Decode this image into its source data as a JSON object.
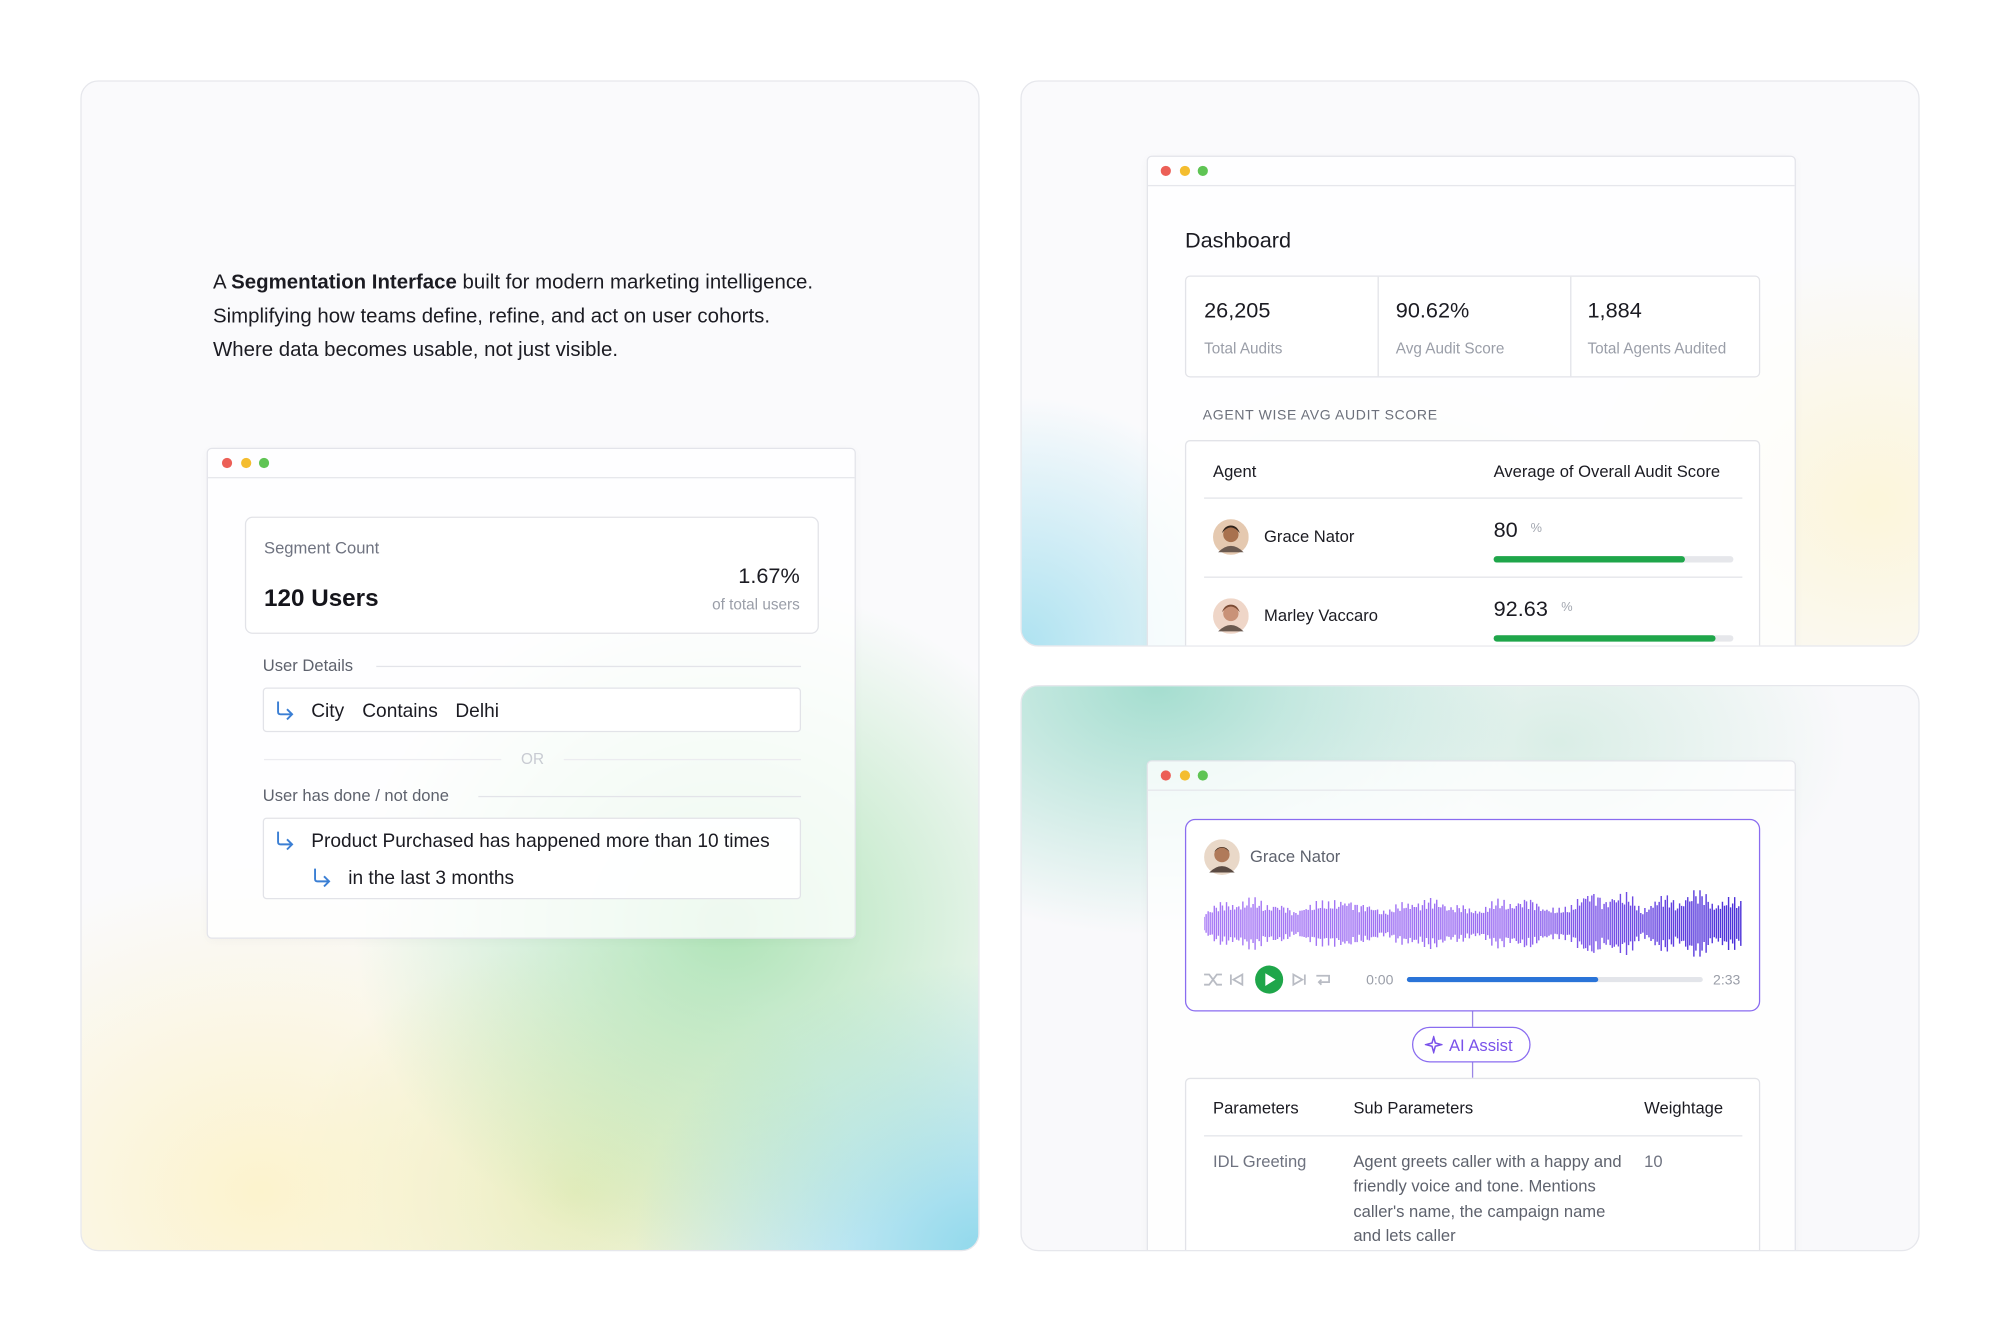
{
  "intro": {
    "lead": "A",
    "emphasis": "Segmentation Interface",
    "rest": "built for modern marketing intelligence.",
    "line2": "Simplifying how teams define, refine, and act on user cohorts.",
    "line3": "Where data becomes usable, not just visible."
  },
  "segment": {
    "label": "Segment Count",
    "count": "120 Users",
    "percent": "1.67%",
    "percent_caption": "of total users",
    "user_details": "User Details",
    "condition": [
      "City",
      "Contains",
      "Delhi"
    ],
    "separator": "OR",
    "done_label": "User has done / not done",
    "event": "Product Purchased has happened more than 10 times",
    "event_window": "in the last 3 months"
  },
  "dashboard": {
    "title": "Dashboard",
    "stats": [
      {
        "value": "26,205",
        "label": "Total Audits"
      },
      {
        "value": "90.62%",
        "label": "Avg Audit Score"
      },
      {
        "value": "1,884",
        "label": "Total Agents Audited"
      }
    ],
    "section": "AGENT WISE AVG AUDIT SCORE",
    "columns": [
      "Agent",
      "Average of Overall Audit Score"
    ],
    "rows": [
      {
        "agent": "Grace Nator",
        "score": 80,
        "unit": "%"
      },
      {
        "agent": "Marley Vaccaro",
        "score": 92.63,
        "unit": "%"
      }
    ]
  },
  "audit": {
    "agent": "Grace Nator",
    "time_start": "0:00",
    "time_end": "2:33",
    "assist": "AI Assist",
    "columns": [
      "Parameters",
      "Sub Parameters",
      "Weightage"
    ],
    "rows": [
      {
        "parameter": "IDL Greeting",
        "description": "Agent greets caller with a happy and friendly voice and tone. Mentions caller's name, the campaign name and lets caller",
        "weightage": 10
      }
    ]
  }
}
